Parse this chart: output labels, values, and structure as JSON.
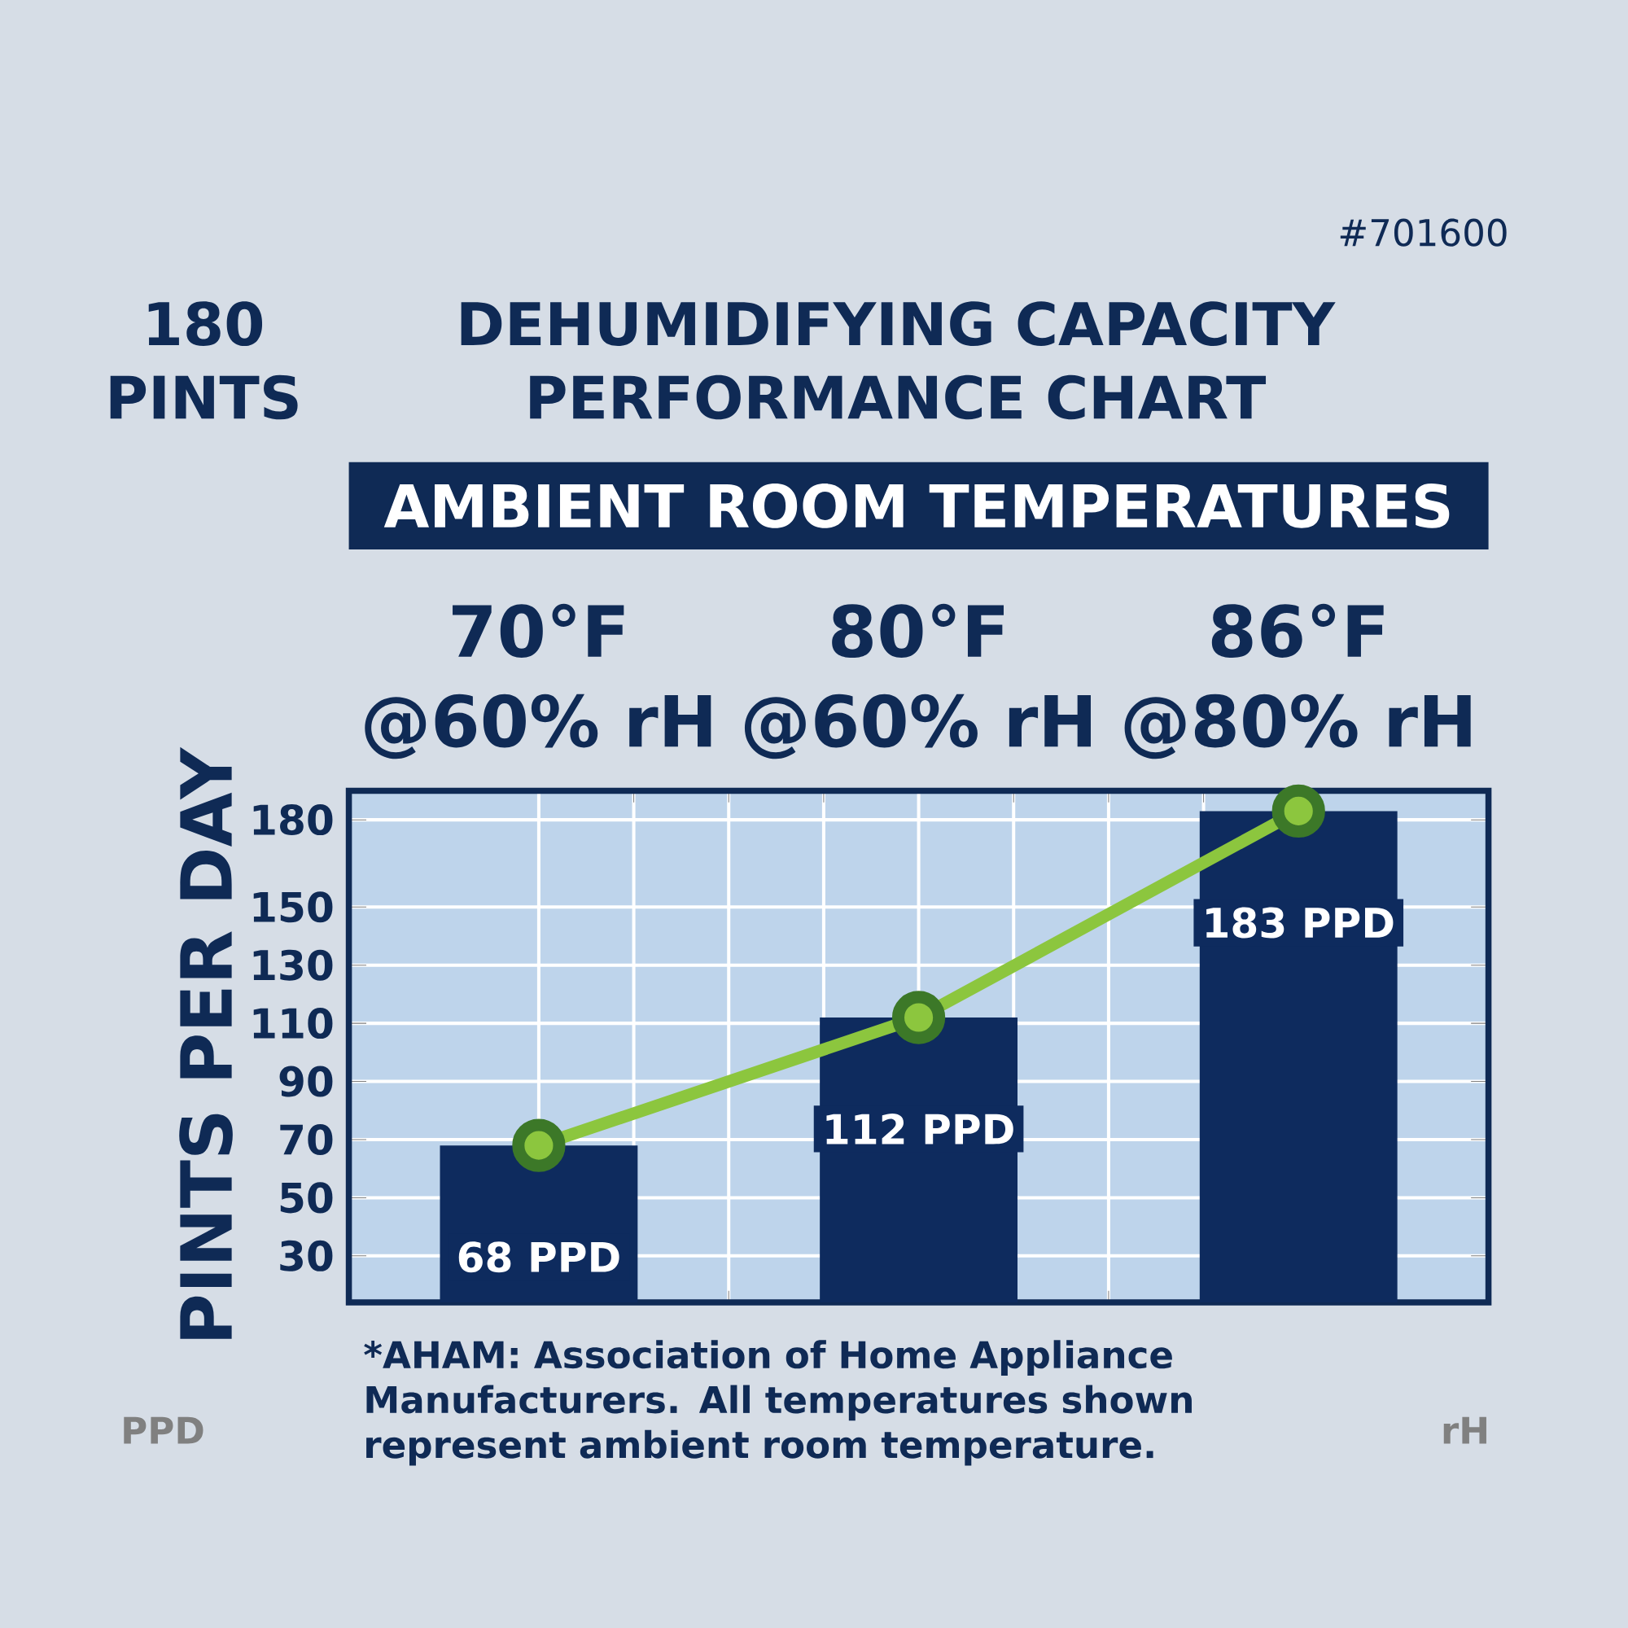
{
  "chart_data": {
    "type": "bar",
    "title": "DEHUMIDIFYING CAPACITY PERFORMANCE CHART",
    "subtitle": "AMBIENT ROOM TEMPERATURES",
    "ylabel": "PINTS PER DAY",
    "categories": [
      "70°F @60% rH",
      "80°F @60% rH",
      "86°F @80% rH"
    ],
    "series": [
      {
        "color": "#0e2b5e",
        "values": [
          68,
          112,
          183
        ],
        "value_labels": [
          "68 PPD",
          "112 PPD",
          "183 PPD"
        ]
      },
      {
        "type": "line",
        "color": "#8cc63e",
        "values": [
          68,
          112,
          183
        ]
      }
    ],
    "marker": "circle",
    "ylim": [
      14,
      190
    ],
    "yticks": [
      30,
      50,
      70,
      90,
      110,
      130,
      150,
      180
    ],
    "grid": true,
    "annotations": [
      "180 PINTS",
      "#701600",
      "*AHAM: Association of Home Appliance Manufacturers. All temperatures shown represent ambient room temperature.",
      "PPD",
      "rH"
    ]
  }
}
